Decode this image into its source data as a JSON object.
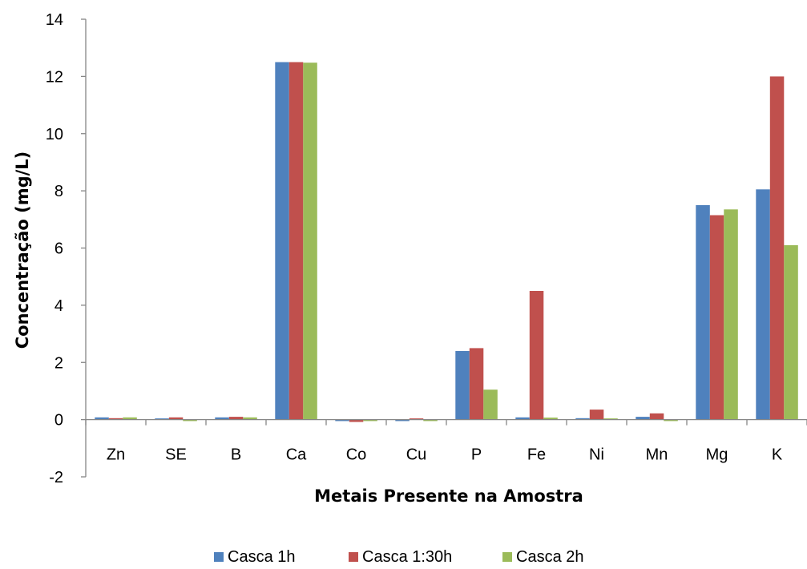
{
  "chart_data": {
    "type": "bar",
    "title": "",
    "xlabel": "Metais Presente na Amostra",
    "ylabel": "Concentração (mg/L)",
    "ylim": [
      -2,
      14
    ],
    "yticks": [
      -2,
      0,
      2,
      4,
      6,
      8,
      10,
      12,
      14
    ],
    "grid": false,
    "legend_position": "bottom",
    "categories": [
      "Zn",
      "SE",
      "B",
      "Ca",
      "Co",
      "Cu",
      "P",
      "Fe",
      "Ni",
      "Mn",
      "Mg",
      "K"
    ],
    "series": [
      {
        "name": "Casca 1h",
        "color": "#4f81bd",
        "values": [
          0.08,
          0.0,
          0.08,
          12.5,
          -0.05,
          -0.05,
          2.4,
          0.08,
          0.05,
          0.1,
          7.5,
          8.05
        ]
      },
      {
        "name": "Casca 1:30h",
        "color": "#c0504d",
        "values": [
          0.05,
          0.08,
          0.1,
          12.5,
          -0.08,
          0.0,
          2.5,
          4.5,
          0.35,
          0.22,
          7.15,
          12.0
        ]
      },
      {
        "name": "Casca 2h",
        "color": "#9bbb59",
        "values": [
          0.08,
          -0.05,
          0.08,
          12.48,
          -0.05,
          -0.05,
          1.05,
          0.07,
          0.03,
          -0.05,
          7.35,
          6.1
        ]
      }
    ]
  }
}
